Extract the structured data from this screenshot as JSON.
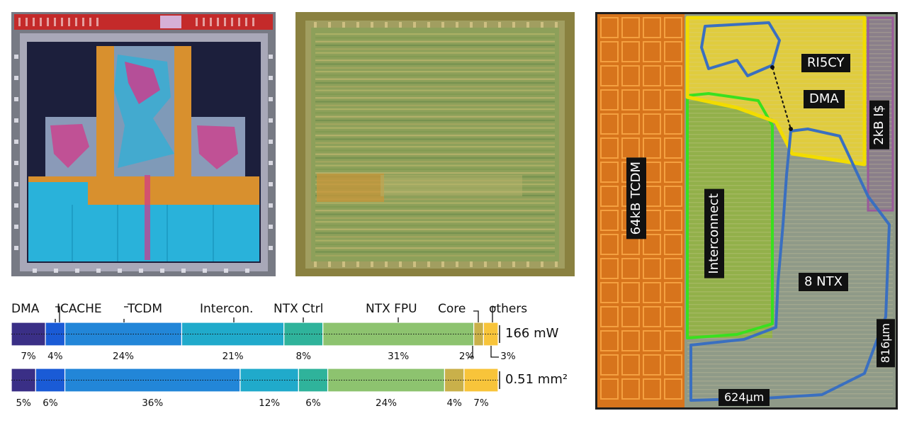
{
  "figure": {
    "layout_panel": "",
    "photo_panel": ""
  },
  "floorplan": {
    "blocks": {
      "tcdm": "64kB TCDM",
      "interconnect": "Interconnect",
      "ntx": "8 NTX",
      "ri5cy": "RI5CY",
      "dma": "DMA",
      "icache": "2kB I$"
    },
    "dimensions": {
      "width": "624µm",
      "height": "816µm"
    },
    "colors": {
      "tcdm": "#e8801a",
      "interconnect": "#39e01f",
      "ntx": "#3a6fc0",
      "ri5cy": "#f2dc00",
      "icache": "#9a5a9a"
    }
  },
  "chart_data": {
    "type": "bar",
    "orientation": "horizontal-stacked",
    "categories": [
      "DMA",
      "ICACHE",
      "TCDM",
      "Intercon.",
      "NTX Ctrl",
      "NTX FPU",
      "Core",
      "others"
    ],
    "series": [
      {
        "name": "",
        "total_label": "166 mW",
        "values": [
          7,
          4,
          24,
          21,
          8,
          31,
          2,
          3
        ],
        "value_labels": [
          "7%",
          "4%",
          "24%",
          "21%",
          "8%",
          "31%",
          "2%",
          "3%"
        ]
      },
      {
        "name": "",
        "total_label": "0.51 mm²",
        "values": [
          5,
          6,
          36,
          12,
          6,
          24,
          4,
          7
        ],
        "value_labels": [
          "5%",
          "6%",
          "36%",
          "12%",
          "6%",
          "24%",
          "4%",
          "7%"
        ]
      }
    ],
    "colors": [
      "#3a2f86",
      "#1a5bd6",
      "#2286d8",
      "#20aacb",
      "#2fb39b",
      "#8dc36f",
      "#c9b04a",
      "#f8c43a"
    ],
    "title": "",
    "xlabel": "",
    "ylabel": ""
  }
}
